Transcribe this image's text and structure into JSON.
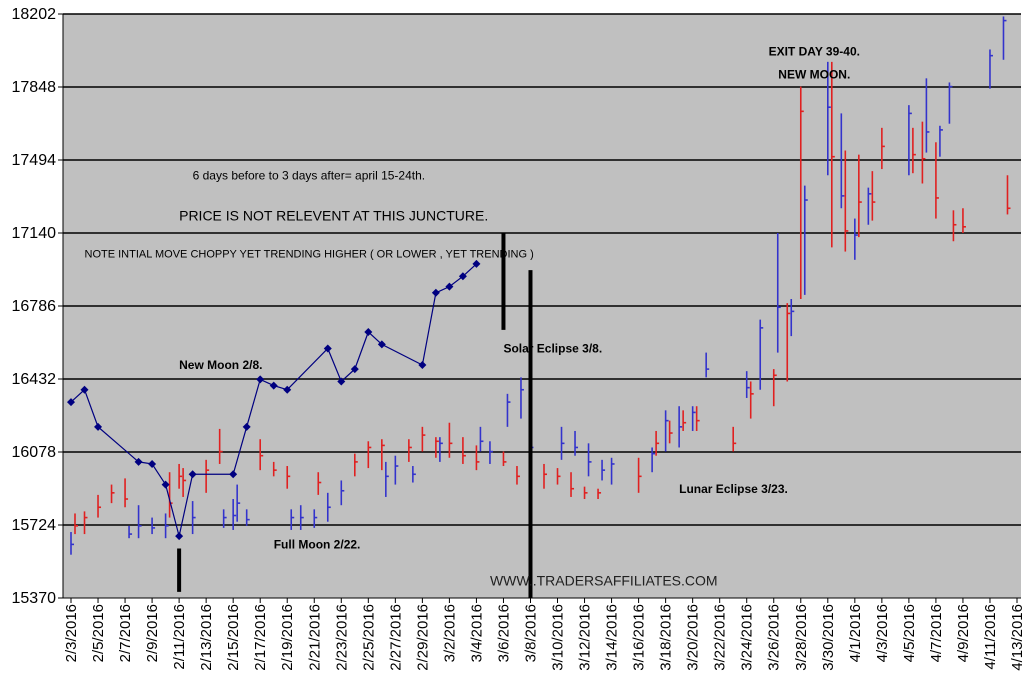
{
  "chart_data": {
    "type": "ohlc",
    "y_range": [
      15370,
      18202
    ],
    "y_ticks": [
      "15370",
      "15724",
      "16078",
      "16432",
      "16786",
      "17140",
      "17494",
      "17848",
      "18202"
    ],
    "grid": "horizontal",
    "x_ticks": [
      "2/3/2016",
      "2/5/2016",
      "2/7/2016",
      "2/9/2016",
      "2/11/2016",
      "2/13/2016",
      "2/15/2016",
      "2/17/2016",
      "2/19/2016",
      "2/21/2016",
      "2/23/2016",
      "2/25/2016",
      "2/27/2016",
      "2/29/2016",
      "3/2/2016",
      "3/4/2016",
      "3/6/2016",
      "3/8/2016",
      "3/10/2016",
      "3/12/2016",
      "3/14/2016",
      "3/16/2016",
      "3/18/2016",
      "3/20/2016",
      "3/22/2016",
      "3/24/2016",
      "3/26/2016",
      "3/28/2016",
      "3/30/2016",
      "4/1/2016",
      "4/3/2016",
      "4/5/2016",
      "4/7/2016",
      "4/9/2016",
      "4/11/2016",
      "4/13/2016"
    ],
    "colors": {
      "up": "#3333cc",
      "down": "#e02020",
      "projection": "#000080",
      "plot_bg": "#c0c0c0"
    },
    "price_bars": [
      {
        "x": "2/3/2016",
        "high": 15690,
        "low": 15580,
        "close": 15630,
        "dir": "up"
      },
      {
        "x": "2/3/2016",
        "high": 15780,
        "low": 15680,
        "close": 15720,
        "dir": "down"
      },
      {
        "x": "2/4/2016",
        "high": 15790,
        "low": 15680,
        "close": 15760,
        "dir": "down"
      },
      {
        "x": "2/5/2016",
        "high": 15870,
        "low": 15760,
        "close": 15810,
        "dir": "down"
      },
      {
        "x": "2/6/2016",
        "high": 15920,
        "low": 15830,
        "close": 15880,
        "dir": "down"
      },
      {
        "x": "2/7/2016",
        "high": 15950,
        "low": 15810,
        "close": 15850,
        "dir": "down"
      },
      {
        "x": "2/7/2016",
        "high": 15720,
        "low": 15660,
        "close": 15680,
        "dir": "up"
      },
      {
        "x": "2/8/2016",
        "high": 15820,
        "low": 15660,
        "close": 15720,
        "dir": "up"
      },
      {
        "x": "2/9/2016",
        "high": 15760,
        "low": 15680,
        "close": 15710,
        "dir": "up"
      },
      {
        "x": "2/10/2016",
        "high": 15780,
        "low": 15660,
        "close": 15720,
        "dir": "up"
      },
      {
        "x": "2/10/2016",
        "high": 15980,
        "low": 15760,
        "close": 15830,
        "dir": "down"
      },
      {
        "x": "2/11/2016",
        "high": 16020,
        "low": 15900,
        "close": 15960,
        "dir": "down"
      },
      {
        "x": "2/11/2016",
        "high": 16000,
        "low": 15860,
        "close": 15940,
        "dir": "down"
      },
      {
        "x": "2/12/2016",
        "high": 15840,
        "low": 15680,
        "close": 15760,
        "dir": "up"
      },
      {
        "x": "2/13/2016",
        "high": 16040,
        "low": 15880,
        "close": 15990,
        "dir": "down"
      },
      {
        "x": "2/14/2016",
        "high": 16190,
        "low": 16020,
        "close": 16080,
        "dir": "down"
      },
      {
        "x": "2/14/2016",
        "high": 15800,
        "low": 15710,
        "close": 15760,
        "dir": "up"
      },
      {
        "x": "2/15/2016",
        "high": 15850,
        "low": 15700,
        "close": 15770,
        "dir": "up"
      },
      {
        "x": "2/15/2016",
        "high": 15920,
        "low": 15740,
        "close": 15830,
        "dir": "up"
      },
      {
        "x": "2/16/2016",
        "high": 15800,
        "low": 15720,
        "close": 15750,
        "dir": "up"
      },
      {
        "x": "2/17/2016",
        "high": 16140,
        "low": 15990,
        "close": 16060,
        "dir": "down"
      },
      {
        "x": "2/18/2016",
        "high": 16030,
        "low": 15960,
        "close": 15990,
        "dir": "down"
      },
      {
        "x": "2/19/2016",
        "high": 16010,
        "low": 15900,
        "close": 15960,
        "dir": "down"
      },
      {
        "x": "2/19/2016",
        "high": 15800,
        "low": 15700,
        "close": 15760,
        "dir": "up"
      },
      {
        "x": "2/20/2016",
        "high": 15820,
        "low": 15700,
        "close": 15760,
        "dir": "up"
      },
      {
        "x": "2/21/2016",
        "high": 15800,
        "low": 15710,
        "close": 15760,
        "dir": "up"
      },
      {
        "x": "2/21/2016",
        "high": 15980,
        "low": 15870,
        "close": 15930,
        "dir": "down"
      },
      {
        "x": "2/22/2016",
        "high": 15880,
        "low": 15740,
        "close": 15810,
        "dir": "up"
      },
      {
        "x": "2/23/2016",
        "high": 15940,
        "low": 15820,
        "close": 15890,
        "dir": "up"
      },
      {
        "x": "2/24/2016",
        "high": 16070,
        "low": 15960,
        "close": 16030,
        "dir": "down"
      },
      {
        "x": "2/25/2016",
        "high": 16130,
        "low": 16000,
        "close": 16100,
        "dir": "down"
      },
      {
        "x": "2/26/2016",
        "high": 16140,
        "low": 15990,
        "close": 16110,
        "dir": "down"
      },
      {
        "x": "2/26/2016",
        "high": 16030,
        "low": 15860,
        "close": 15960,
        "dir": "up"
      },
      {
        "x": "2/27/2016",
        "high": 16060,
        "low": 15920,
        "close": 16010,
        "dir": "up"
      },
      {
        "x": "2/28/2016",
        "high": 16140,
        "low": 16030,
        "close": 16100,
        "dir": "down"
      },
      {
        "x": "2/28/2016",
        "high": 16010,
        "low": 15930,
        "close": 15970,
        "dir": "up"
      },
      {
        "x": "2/29/2016",
        "high": 16200,
        "low": 16080,
        "close": 16160,
        "dir": "down"
      },
      {
        "x": "3/1/2016",
        "high": 16150,
        "low": 16050,
        "close": 16130,
        "dir": "down"
      },
      {
        "x": "3/1/2016",
        "high": 16150,
        "low": 16030,
        "close": 16120,
        "dir": "up"
      },
      {
        "x": "3/2/2016",
        "high": 16220,
        "low": 16050,
        "close": 16120,
        "dir": "down"
      },
      {
        "x": "3/3/2016",
        "high": 16150,
        "low": 16020,
        "close": 16060,
        "dir": "down"
      },
      {
        "x": "3/4/2016",
        "high": 16110,
        "low": 15990,
        "close": 16030,
        "dir": "down"
      },
      {
        "x": "3/4/2016",
        "high": 16200,
        "low": 16080,
        "close": 16130,
        "dir": "up"
      },
      {
        "x": "3/5/2016",
        "high": 16130,
        "low": 16020,
        "close": 16080,
        "dir": "up"
      },
      {
        "x": "3/6/2016",
        "high": 16080,
        "low": 16010,
        "close": 16030,
        "dir": "down"
      },
      {
        "x": "3/6/2016",
        "high": 16360,
        "low": 16200,
        "close": 16320,
        "dir": "up"
      },
      {
        "x": "3/7/2016",
        "high": 16010,
        "low": 15920,
        "close": 15960,
        "dir": "down"
      },
      {
        "x": "3/7/2016",
        "high": 16440,
        "low": 16240,
        "close": 16380,
        "dir": "up"
      },
      {
        "x": "3/8/2016",
        "high": 16150,
        "low": 16040,
        "close": 16100,
        "dir": "up"
      },
      {
        "x": "3/9/2016",
        "high": 16020,
        "low": 15900,
        "close": 15970,
        "dir": "down"
      },
      {
        "x": "3/10/2016",
        "high": 16000,
        "low": 15920,
        "close": 15960,
        "dir": "down"
      },
      {
        "x": "3/10/2016",
        "high": 16200,
        "low": 16040,
        "close": 16120,
        "dir": "up"
      },
      {
        "x": "3/11/2016",
        "high": 15980,
        "low": 15860,
        "close": 15900,
        "dir": "down"
      },
      {
        "x": "3/11/2016",
        "high": 16180,
        "low": 16060,
        "close": 16100,
        "dir": "up"
      },
      {
        "x": "3/12/2016",
        "high": 15910,
        "low": 15850,
        "close": 15880,
        "dir": "down"
      },
      {
        "x": "3/12/2016",
        "high": 16120,
        "low": 15960,
        "close": 16030,
        "dir": "up"
      },
      {
        "x": "3/13/2016",
        "high": 15900,
        "low": 15850,
        "close": 15880,
        "dir": "down"
      },
      {
        "x": "3/13/2016",
        "high": 16040,
        "low": 15940,
        "close": 15990,
        "dir": "up"
      },
      {
        "x": "3/14/2016",
        "high": 16050,
        "low": 15920,
        "close": 16020,
        "dir": "up"
      },
      {
        "x": "3/16/2016",
        "high": 16050,
        "low": 15880,
        "close": 15960,
        "dir": "down"
      },
      {
        "x": "3/17/2016",
        "high": 16100,
        "low": 15980,
        "close": 16070,
        "dir": "up"
      },
      {
        "x": "3/17/2016",
        "high": 16180,
        "low": 16060,
        "close": 16120,
        "dir": "down"
      },
      {
        "x": "3/18/2016",
        "high": 16280,
        "low": 16080,
        "close": 16230,
        "dir": "up"
      },
      {
        "x": "3/18/2016",
        "high": 16230,
        "low": 16120,
        "close": 16170,
        "dir": "down"
      },
      {
        "x": "3/19/2016",
        "high": 16300,
        "low": 16100,
        "close": 16200,
        "dir": "up"
      },
      {
        "x": "3/19/2016",
        "high": 16280,
        "low": 16180,
        "close": 16220,
        "dir": "down"
      },
      {
        "x": "3/20/2016",
        "high": 16300,
        "low": 16180,
        "close": 16270,
        "dir": "up"
      },
      {
        "x": "3/20/2016",
        "high": 16300,
        "low": 16180,
        "close": 16230,
        "dir": "down"
      },
      {
        "x": "3/21/2016",
        "high": 16560,
        "low": 16440,
        "close": 16480,
        "dir": "up"
      },
      {
        "x": "3/23/2016",
        "high": 16200,
        "low": 16080,
        "close": 16120,
        "dir": "down"
      },
      {
        "x": "3/24/2016",
        "high": 16470,
        "low": 16340,
        "close": 16390,
        "dir": "up"
      },
      {
        "x": "3/24/2016",
        "high": 16420,
        "low": 16240,
        "close": 16360,
        "dir": "down"
      },
      {
        "x": "3/25/2016",
        "high": 16720,
        "low": 16380,
        "close": 16680,
        "dir": "up"
      },
      {
        "x": "3/26/2016",
        "high": 16480,
        "low": 16300,
        "close": 16450,
        "dir": "down"
      },
      {
        "x": "3/26/2016",
        "high": 17140,
        "low": 16560,
        "close": 16780,
        "dir": "up"
      },
      {
        "x": "3/27/2016",
        "high": 16800,
        "low": 16420,
        "close": 16750,
        "dir": "down"
      },
      {
        "x": "3/27/2016",
        "high": 16820,
        "low": 16640,
        "close": 16760,
        "dir": "up"
      },
      {
        "x": "3/28/2016",
        "high": 17850,
        "low": 16820,
        "close": 17730,
        "dir": "down"
      },
      {
        "x": "3/28/2016",
        "high": 17370,
        "low": 16840,
        "close": 17300,
        "dir": "up"
      },
      {
        "x": "3/30/2016",
        "high": 17970,
        "low": 17420,
        "close": 17750,
        "dir": "up"
      },
      {
        "x": "3/30/2016",
        "high": 17970,
        "low": 17070,
        "close": 17510,
        "dir": "down"
      },
      {
        "x": "3/31/2016",
        "high": 17720,
        "low": 17260,
        "close": 17320,
        "dir": "up"
      },
      {
        "x": "3/31/2016",
        "high": 17540,
        "low": 17050,
        "close": 17150,
        "dir": "down"
      },
      {
        "x": "4/1/2016",
        "high": 17210,
        "low": 17010,
        "close": 17130,
        "dir": "up"
      },
      {
        "x": "4/1/2016",
        "high": 17520,
        "low": 17120,
        "close": 17290,
        "dir": "down"
      },
      {
        "x": "4/2/2016",
        "high": 17360,
        "low": 17180,
        "close": 17330,
        "dir": "up"
      },
      {
        "x": "4/2/2016",
        "high": 17440,
        "low": 17200,
        "close": 17290,
        "dir": "down"
      },
      {
        "x": "4/3/2016",
        "high": 17650,
        "low": 17450,
        "close": 17560,
        "dir": "down"
      },
      {
        "x": "4/5/2016",
        "high": 17760,
        "low": 17420,
        "close": 17720,
        "dir": "up"
      },
      {
        "x": "4/5/2016",
        "high": 17650,
        "low": 17430,
        "close": 17520,
        "dir": "down"
      },
      {
        "x": "4/6/2016",
        "high": 17680,
        "low": 17380,
        "close": 17500,
        "dir": "down"
      },
      {
        "x": "4/6/2016",
        "high": 17890,
        "low": 17530,
        "close": 17630,
        "dir": "up"
      },
      {
        "x": "4/7/2016",
        "high": 17580,
        "low": 17210,
        "close": 17310,
        "dir": "down"
      },
      {
        "x": "4/7/2016",
        "high": 17660,
        "low": 17510,
        "close": 17640,
        "dir": "up"
      },
      {
        "x": "4/8/2016",
        "high": 17870,
        "low": 17670,
        "close": 17850,
        "dir": "up"
      },
      {
        "x": "4/8/2016",
        "high": 17250,
        "low": 17100,
        "close": 17180,
        "dir": "down"
      },
      {
        "x": "4/9/2016",
        "high": 17260,
        "low": 17140,
        "close": 17170,
        "dir": "down"
      },
      {
        "x": "4/11/2016",
        "high": 18030,
        "low": 17840,
        "close": 18000,
        "dir": "up"
      },
      {
        "x": "4/12/2016",
        "high": 18190,
        "low": 17980,
        "close": 18170,
        "dir": "up"
      },
      {
        "x": "4/12/2016",
        "high": 17420,
        "low": 17230,
        "close": 17260,
        "dir": "down"
      }
    ],
    "projection_line": [
      {
        "x": "2/3/2016",
        "y": 16320
      },
      {
        "x": "2/4/2016",
        "y": 16380
      },
      {
        "x": "2/5/2016",
        "y": 16200
      },
      {
        "x": "2/8/2016",
        "y": 16030
      },
      {
        "x": "2/9/2016",
        "y": 16020
      },
      {
        "x": "2/10/2016",
        "y": 15920
      },
      {
        "x": "2/11/2016",
        "y": 15670
      },
      {
        "x": "2/12/2016",
        "y": 15970
      },
      {
        "x": "2/15/2016",
        "y": 15970
      },
      {
        "x": "2/16/2016",
        "y": 16200
      },
      {
        "x": "2/17/2016",
        "y": 16430
      },
      {
        "x": "2/18/2016",
        "y": 16400
      },
      {
        "x": "2/19/2016",
        "y": 16380
      },
      {
        "x": "2/22/2016",
        "y": 16580
      },
      {
        "x": "2/23/2016",
        "y": 16420
      },
      {
        "x": "2/24/2016",
        "y": 16480
      },
      {
        "x": "2/25/2016",
        "y": 16660
      },
      {
        "x": "2/26/2016",
        "y": 16600
      },
      {
        "x": "2/29/2016",
        "y": 16500
      },
      {
        "x": "3/1/2016",
        "y": 16850
      },
      {
        "x": "3/2/2016",
        "y": 16880
      },
      {
        "x": "3/3/2016",
        "y": 16930
      },
      {
        "x": "3/4/2016",
        "y": 16990
      }
    ],
    "markers": [
      {
        "x": "2/11/2016",
        "y_from": 15400,
        "y_to": 15610
      },
      {
        "x": "3/6/2016",
        "y_from": 16670,
        "y_to": 17140
      },
      {
        "x": "3/8/2016",
        "y_from": 15370,
        "y_to": 16960
      }
    ],
    "annotations": [
      {
        "text": "EXIT DAY 39-40.",
        "style": "bold",
        "x": "3/29/2016",
        "y": 18000,
        "anchor": "middle"
      },
      {
        "text": "NEW MOON.",
        "style": "bold",
        "x": "3/29/2016",
        "y": 17890,
        "anchor": "middle"
      },
      {
        "text": "6 days before to 3 days after= april 15-24th.",
        "style": "mid",
        "x": "2/12/2016",
        "y": 17400,
        "anchor": "start"
      },
      {
        "text": "PRICE IS NOT RELEVENT AT THIS JUNCTURE.",
        "style": "big",
        "x": "2/11/2016",
        "y": 17200,
        "anchor": "start"
      },
      {
        "text": "NOTE INTIAL MOVE CHOPPY YET TRENDING HIGHER ( OR LOWER , YET TRENDING )",
        "style": "small",
        "x": "2/4/2016",
        "y": 17020,
        "anchor": "start"
      },
      {
        "text": "Solar Eclipse 3/8.",
        "style": "bold",
        "x": "3/6/2016",
        "y": 16560,
        "anchor": "start"
      },
      {
        "text": "New Moon 2/8.",
        "style": "bold",
        "x": "2/11/2016",
        "y": 16480,
        "anchor": "start"
      },
      {
        "text": "Lunar Eclipse 3/23.",
        "style": "bold",
        "x": "3/19/2016",
        "y": 15880,
        "anchor": "start"
      },
      {
        "text": "Full Moon 2/22.",
        "style": "bold",
        "x": "2/18/2016",
        "y": 15610,
        "anchor": "start"
      },
      {
        "text": "WWW..TRADERSAFFILIATES.COM",
        "style": "url",
        "x": "3/5/2016",
        "y": 15430,
        "anchor": "start"
      }
    ]
  }
}
